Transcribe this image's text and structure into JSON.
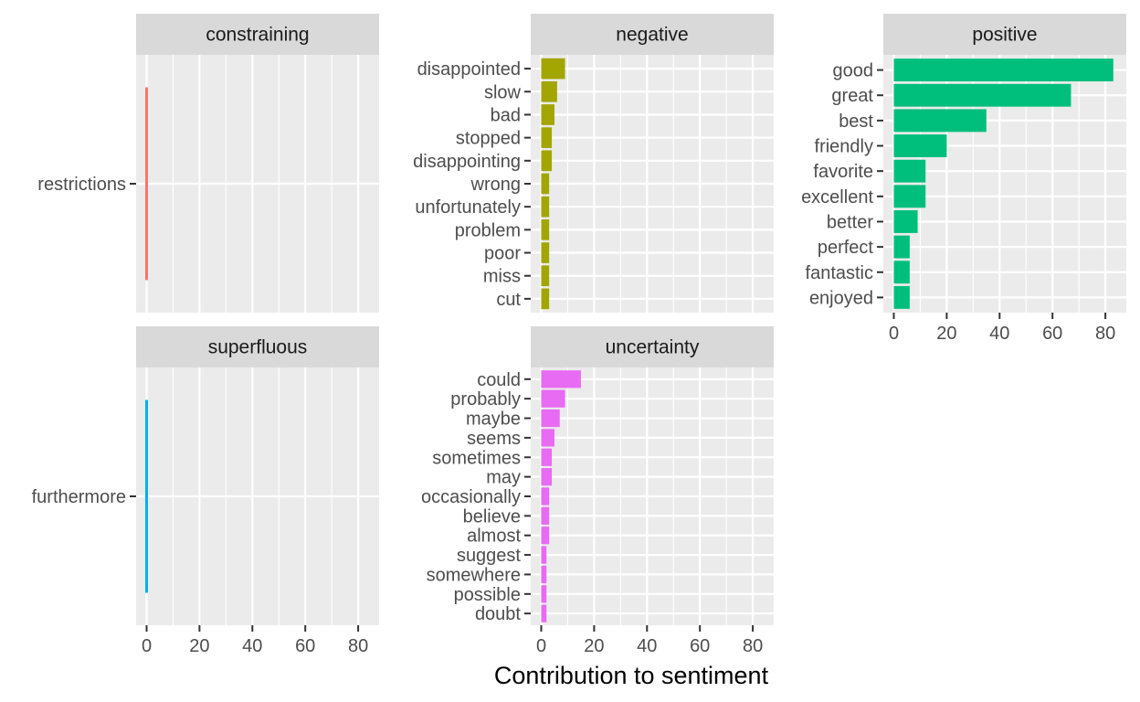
{
  "chart_data": {
    "type": "bar",
    "orientation": "horizontal",
    "xlabel": "Contribution to sentiment",
    "xlim": [
      0,
      85
    ],
    "x_ticks": [
      0,
      20,
      40,
      60,
      80
    ],
    "grid": true,
    "facets": [
      {
        "name": "constraining",
        "color": "#F8766D",
        "categories": [
          "restrictions"
        ],
        "values": [
          1
        ]
      },
      {
        "name": "negative",
        "color": "#A3A500",
        "categories": [
          "disappointed",
          "slow",
          "bad",
          "stopped",
          "disappointing",
          "wrong",
          "unfortunately",
          "problem",
          "poor",
          "miss",
          "cut"
        ],
        "values": [
          9,
          6,
          5,
          4,
          4,
          3,
          3,
          3,
          3,
          3,
          3
        ]
      },
      {
        "name": "positive",
        "color": "#00BF7D",
        "categories": [
          "good",
          "great",
          "best",
          "friendly",
          "favorite",
          "excellent",
          "better",
          "perfect",
          "fantastic",
          "enjoyed"
        ],
        "values": [
          83,
          67,
          35,
          20,
          12,
          12,
          9,
          6,
          6,
          6
        ]
      },
      {
        "name": "superfluous",
        "color": "#00B0F6",
        "categories": [
          "furthermore"
        ],
        "values": [
          1
        ]
      },
      {
        "name": "uncertainty",
        "color": "#E76BF3",
        "categories": [
          "could",
          "probably",
          "maybe",
          "seems",
          "sometimes",
          "may",
          "occasionally",
          "believe",
          "almost",
          "suggest",
          "somewhere",
          "possible",
          "doubt"
        ],
        "values": [
          15,
          9,
          7,
          5,
          4,
          4,
          3,
          3,
          3,
          2,
          2,
          2,
          2
        ]
      }
    ]
  }
}
